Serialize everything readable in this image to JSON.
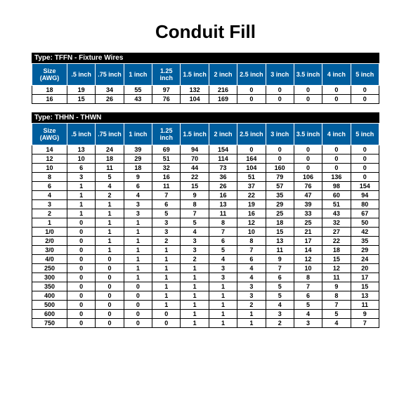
{
  "title": "Conduit Fill",
  "title_fontsize": 26,
  "header_bg": "#005e9e",
  "header_fg": "#ffffff",
  "typebar_bg": "#000000",
  "typebar_fg": "#ffffff",
  "cell_border": "#000000",
  "background_color": "#ffffff",
  "tables": [
    {
      "type_label": "Type: TFFN - Fixture Wires",
      "columns": [
        "Size (AWG)",
        ".5 inch",
        ".75 inch",
        "1 inch",
        "1.25 inch",
        "1.5  inch",
        "2 inch",
        "2.5 inch",
        "3 inch",
        "3.5 inch",
        "4 inch",
        "5 inch"
      ],
      "rows": [
        [
          "18",
          "19",
          "34",
          "55",
          "97",
          "132",
          "216",
          "0",
          "0",
          "0",
          "0",
          "0"
        ],
        [
          "16",
          "15",
          "26",
          "43",
          "76",
          "104",
          "169",
          "0",
          "0",
          "0",
          "0",
          "0"
        ]
      ]
    },
    {
      "type_label": "Type: THHN - THWN",
      "columns": [
        "Size (AWG)",
        ".5 inch",
        ".75 inch",
        "1 inch",
        "1.25 inch",
        "1.5  inch",
        "2 inch",
        "2.5 inch",
        "3 inch",
        "3.5 inch",
        "4 inch",
        "5 inch"
      ],
      "rows": [
        [
          "14",
          "13",
          "24",
          "39",
          "69",
          "94",
          "154",
          "0",
          "0",
          "0",
          "0",
          "0"
        ],
        [
          "12",
          "10",
          "18",
          "29",
          "51",
          "70",
          "114",
          "164",
          "0",
          "0",
          "0",
          "0"
        ],
        [
          "10",
          "6",
          "11",
          "18",
          "32",
          "44",
          "73",
          "104",
          "160",
          "0",
          "0",
          "0"
        ],
        [
          "8",
          "3",
          "5",
          "9",
          "16",
          "22",
          "36",
          "51",
          "79",
          "106",
          "136",
          "0"
        ],
        [
          "6",
          "1",
          "4",
          "6",
          "11",
          "15",
          "26",
          "37",
          "57",
          "76",
          "98",
          "154"
        ],
        [
          "4",
          "1",
          "2",
          "4",
          "7",
          "9",
          "16",
          "22",
          "35",
          "47",
          "60",
          "94"
        ],
        [
          "3",
          "1",
          "1",
          "3",
          "6",
          "8",
          "13",
          "19",
          "29",
          "39",
          "51",
          "80"
        ],
        [
          "2",
          "1",
          "1",
          "3",
          "5",
          "7",
          "11",
          "16",
          "25",
          "33",
          "43",
          "67"
        ],
        [
          "1",
          "0",
          "1",
          "1",
          "3",
          "5",
          "8",
          "12",
          "18",
          "25",
          "32",
          "50"
        ],
        [
          "1/0",
          "0",
          "1",
          "1",
          "3",
          "4",
          "7",
          "10",
          "15",
          "21",
          "27",
          "42"
        ],
        [
          "2/0",
          "0",
          "1",
          "1",
          "2",
          "3",
          "6",
          "8",
          "13",
          "17",
          "22",
          "35"
        ],
        [
          "3/0",
          "0",
          "1",
          "1",
          "1",
          "3",
          "5",
          "7",
          "11",
          "14",
          "18",
          "29"
        ],
        [
          "4/0",
          "0",
          "0",
          "1",
          "1",
          "2",
          "4",
          "6",
          "9",
          "12",
          "15",
          "24"
        ],
        [
          "250",
          "0",
          "0",
          "1",
          "1",
          "1",
          "3",
          "4",
          "7",
          "10",
          "12",
          "20"
        ],
        [
          "300",
          "0",
          "0",
          "1",
          "1",
          "1",
          "3",
          "4",
          "6",
          "8",
          "11",
          "17"
        ],
        [
          "350",
          "0",
          "0",
          "0",
          "1",
          "1",
          "1",
          "3",
          "5",
          "7",
          "9",
          "15"
        ],
        [
          "400",
          "0",
          "0",
          "0",
          "1",
          "1",
          "1",
          "3",
          "5",
          "6",
          "8",
          "13"
        ],
        [
          "500",
          "0",
          "0",
          "0",
          "1",
          "1",
          "1",
          "2",
          "4",
          "5",
          "7",
          "11"
        ],
        [
          "600",
          "0",
          "0",
          "0",
          "0",
          "1",
          "1",
          "1",
          "3",
          "4",
          "5",
          "9"
        ],
        [
          "750",
          "0",
          "0",
          "0",
          "0",
          "1",
          "1",
          "1",
          "2",
          "3",
          "4",
          "7"
        ]
      ]
    }
  ]
}
